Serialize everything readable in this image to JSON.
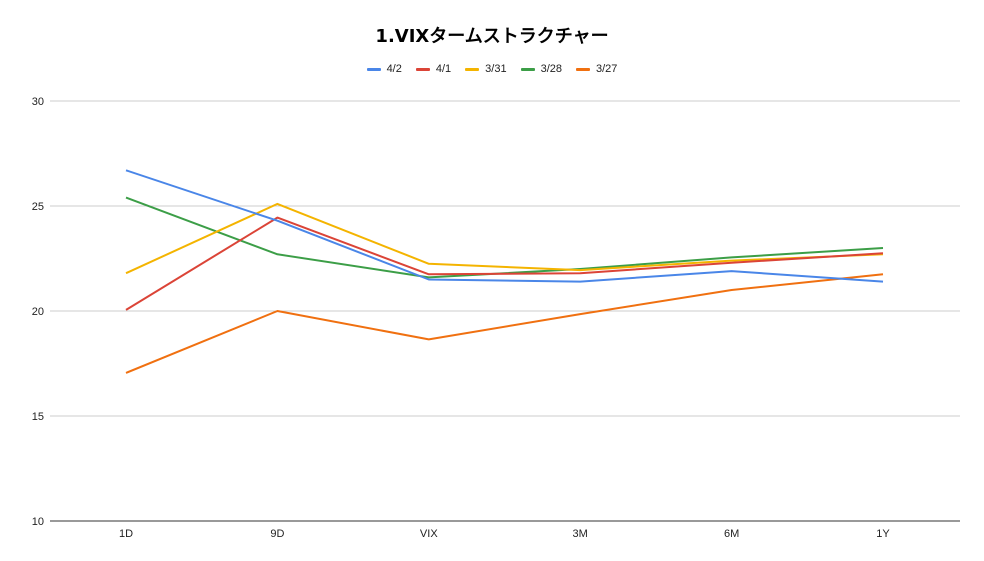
{
  "chart_data": {
    "type": "line",
    "title": "1.VIXタームストラクチャー",
    "categories": [
      "1D",
      "9D",
      "VIX",
      "3M",
      "6M",
      "1Y"
    ],
    "yticks": [
      "10",
      "15",
      "20",
      "25",
      "30"
    ],
    "ylim": [
      10,
      30
    ],
    "grid": true,
    "legend_position": "top",
    "series": [
      {
        "name": "4/2",
        "color": "#4a86e8",
        "values": [
          26.7,
          24.3,
          21.5,
          21.4,
          21.9,
          21.4
        ]
      },
      {
        "name": "4/1",
        "color": "#db4437",
        "values": [
          20.05,
          24.45,
          21.75,
          21.8,
          22.3,
          22.75
        ]
      },
      {
        "name": "3/31",
        "color": "#f4b400",
        "values": [
          21.8,
          25.1,
          22.25,
          21.95,
          22.4,
          22.7
        ]
      },
      {
        "name": "3/28",
        "color": "#3c9e47",
        "values": [
          25.4,
          22.7,
          21.6,
          22.0,
          22.55,
          23.0
        ]
      },
      {
        "name": "3/27",
        "color": "#f07010",
        "values": [
          17.05,
          20.0,
          18.65,
          19.85,
          21.0,
          21.75
        ]
      }
    ]
  }
}
